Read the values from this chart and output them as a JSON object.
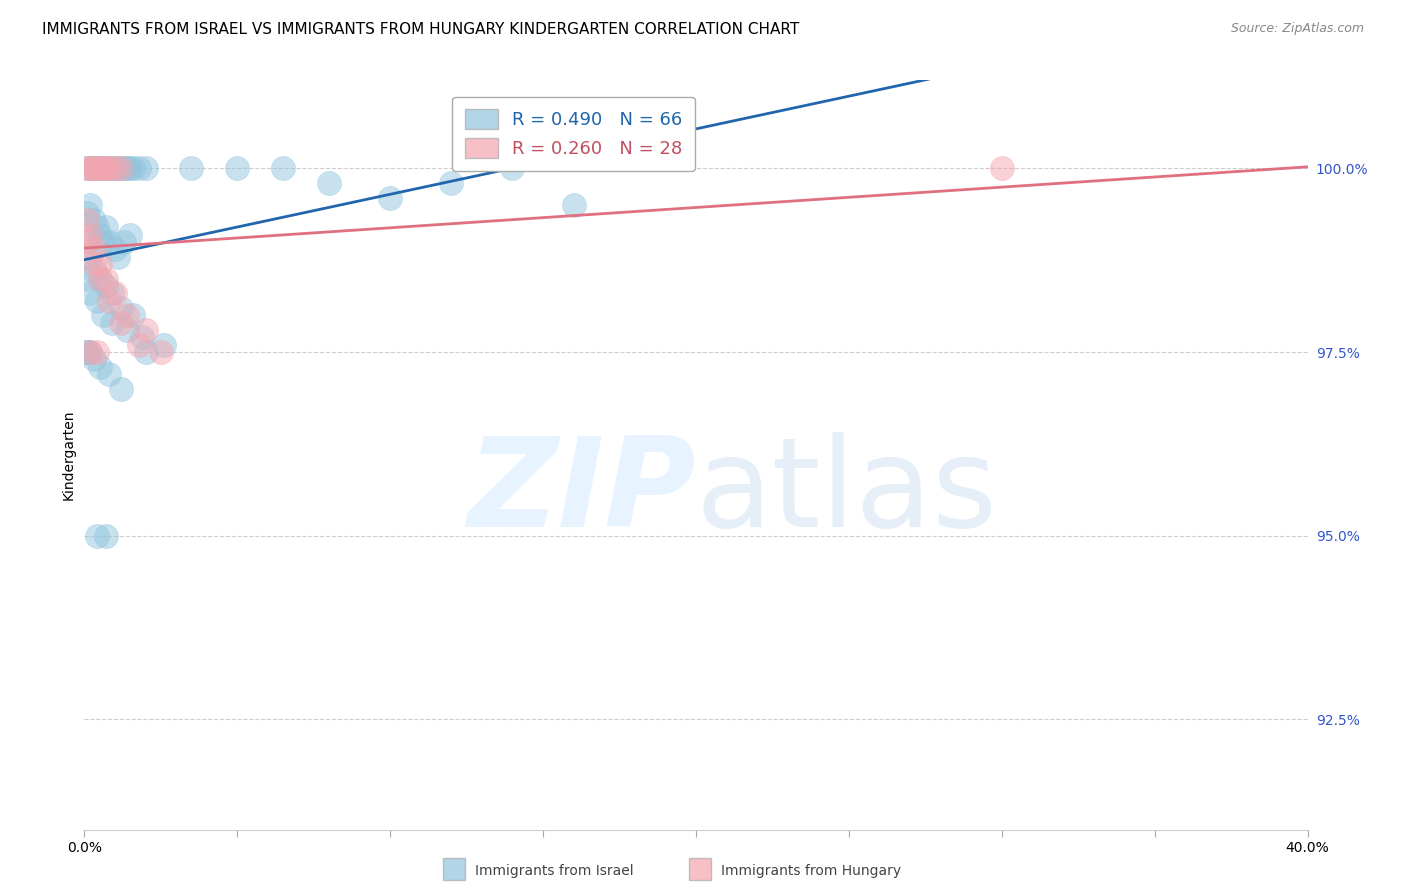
{
  "title": "IMMIGRANTS FROM ISRAEL VS IMMIGRANTS FROM HUNGARY KINDERGARTEN CORRELATION CHART",
  "source": "Source: ZipAtlas.com",
  "ylabel": "Kindergarten",
  "yticks": [
    92.5,
    95.0,
    97.5,
    100.0
  ],
  "ytick_labels": [
    "92.5%",
    "95.0%",
    "97.5%",
    "100.0%"
  ],
  "xmin": 0.0,
  "xmax": 0.4,
  "ymin": 91.0,
  "ymax": 101.2,
  "israel_color": "#92c5de",
  "hungary_color": "#f4a6b0",
  "israel_line_color": "#2166ac",
  "hungary_line_color": "#e07080",
  "israel_R": 0.49,
  "israel_N": 66,
  "hungary_R": 0.26,
  "hungary_N": 28,
  "legend_israel": "Immigrants from Israel",
  "legend_hungary": "Immigrants from Hungary",
  "israel_scatter_x": [
    0.001,
    0.002,
    0.003,
    0.003,
    0.004,
    0.005,
    0.005,
    0.006,
    0.007,
    0.008,
    0.009,
    0.01,
    0.011,
    0.012,
    0.013,
    0.014,
    0.015,
    0.016,
    0.018,
    0.02,
    0.001,
    0.002,
    0.003,
    0.004,
    0.005,
    0.006,
    0.007,
    0.008,
    0.01,
    0.011,
    0.013,
    0.015,
    0.001,
    0.002,
    0.003,
    0.005,
    0.007,
    0.009,
    0.012,
    0.016,
    0.001,
    0.002,
    0.004,
    0.006,
    0.009,
    0.014,
    0.019,
    0.026,
    0.001,
    0.003,
    0.005,
    0.008,
    0.012,
    0.02,
    0.035,
    0.05,
    0.065,
    0.08,
    0.1,
    0.12,
    0.14,
    0.16,
    0.001,
    0.002,
    0.004,
    0.007
  ],
  "israel_scatter_y": [
    100.0,
    100.0,
    100.0,
    100.0,
    100.0,
    100.0,
    100.0,
    100.0,
    100.0,
    100.0,
    100.0,
    100.0,
    100.0,
    100.0,
    100.0,
    100.0,
    100.0,
    100.0,
    100.0,
    100.0,
    99.4,
    99.5,
    99.3,
    99.2,
    99.1,
    99.0,
    99.2,
    99.0,
    98.9,
    98.8,
    99.0,
    99.1,
    99.0,
    98.8,
    98.6,
    98.5,
    98.4,
    98.3,
    98.1,
    98.0,
    98.5,
    98.3,
    98.2,
    98.0,
    97.9,
    97.8,
    97.7,
    97.6,
    97.5,
    97.4,
    97.3,
    97.2,
    97.0,
    97.5,
    100.0,
    100.0,
    100.0,
    99.8,
    99.6,
    99.8,
    100.0,
    99.5,
    97.5,
    97.5,
    95.0,
    95.0
  ],
  "hungary_scatter_x": [
    0.001,
    0.002,
    0.003,
    0.004,
    0.005,
    0.006,
    0.007,
    0.008,
    0.01,
    0.012,
    0.001,
    0.002,
    0.003,
    0.005,
    0.007,
    0.01,
    0.014,
    0.02,
    0.001,
    0.003,
    0.005,
    0.008,
    0.012,
    0.018,
    0.025,
    0.002,
    0.004,
    0.3
  ],
  "hungary_scatter_y": [
    100.0,
    100.0,
    100.0,
    100.0,
    100.0,
    100.0,
    100.0,
    100.0,
    100.0,
    100.0,
    99.3,
    99.1,
    98.9,
    98.7,
    98.5,
    98.3,
    98.0,
    97.8,
    99.0,
    98.7,
    98.5,
    98.2,
    97.9,
    97.6,
    97.5,
    97.5,
    97.5,
    100.0
  ],
  "title_fontsize": 11,
  "tick_fontsize": 10,
  "axis_label_fontsize": 10
}
